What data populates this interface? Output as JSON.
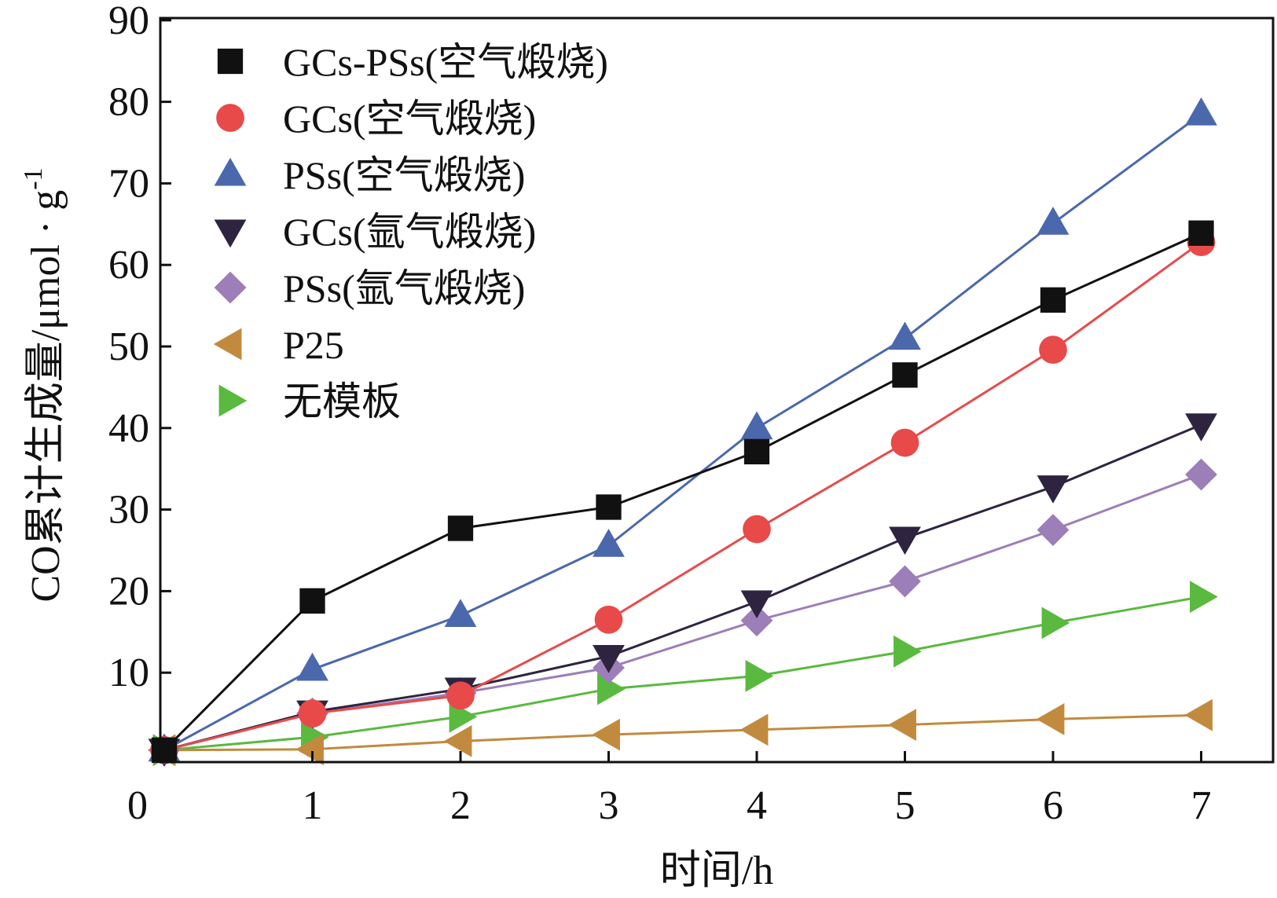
{
  "chart_data": {
    "type": "line",
    "title": "",
    "xlabel": "时间/h",
    "ylabel": "CO累计生成量/μmol · g",
    "ylabel_superscript": "-1",
    "x": [
      0,
      1,
      2,
      3,
      4,
      5,
      6,
      7
    ],
    "xlim": [
      0,
      7.5
    ],
    "ylim": [
      0,
      90
    ],
    "x_ticks": [
      "0",
      "1",
      "2",
      "3",
      "4",
      "5",
      "6",
      "7"
    ],
    "y_ticks": [
      "10",
      "20",
      "30",
      "40",
      "50",
      "60",
      "70",
      "80",
      "90"
    ],
    "y_tick_values": [
      10,
      20,
      30,
      40,
      50,
      60,
      70,
      80,
      90
    ],
    "legend_position": "top-left",
    "series": [
      {
        "name": "GCs-PSs(空气煅烧)",
        "marker": "square",
        "color": "#111111",
        "line_color": "#111111",
        "values": [
          0.5,
          18.8,
          27.7,
          30.3,
          37.1,
          46.5,
          55.7,
          63.9
        ]
      },
      {
        "name": "GCs(空气煅烧)",
        "marker": "circle",
        "color": "#e84a4a",
        "line_color": "#e84a4a",
        "values": [
          0.5,
          5.0,
          7.2,
          16.5,
          27.6,
          38.2,
          49.6,
          62.8
        ]
      },
      {
        "name": "PSs(空气煅烧)",
        "marker": "triangle-up",
        "color": "#4b68ad",
        "line_color": "#4b68ad",
        "values": [
          0.5,
          10.4,
          17.0,
          25.6,
          40.0,
          51.0,
          65.1,
          78.5
        ]
      },
      {
        "name": "GCs(氩气煅烧)",
        "marker": "triangle-down",
        "color": "#2e2440",
        "line_color": "#2e2440",
        "values": [
          0.5,
          5.2,
          8.0,
          12.0,
          18.7,
          26.5,
          32.8,
          40.4
        ]
      },
      {
        "name": "PSs(氩气煅烧)",
        "marker": "diamond",
        "color": "#9c7eb8",
        "line_color": "#9c7eb8",
        "values": [
          0.5,
          5.0,
          7.5,
          10.6,
          16.4,
          21.2,
          27.5,
          34.3
        ]
      },
      {
        "name": "P25",
        "marker": "triangle-left",
        "color": "#c28a3e",
        "line_color": "#c28a3e",
        "values": [
          0.5,
          0.6,
          1.6,
          2.4,
          3.0,
          3.6,
          4.3,
          4.8
        ]
      },
      {
        "name": "无模板",
        "marker": "triangle-right",
        "color": "#5ab93f",
        "line_color": "#5ab93f",
        "values": [
          0.5,
          2.1,
          4.6,
          8.0,
          9.6,
          12.6,
          16.1,
          19.3
        ]
      }
    ]
  }
}
